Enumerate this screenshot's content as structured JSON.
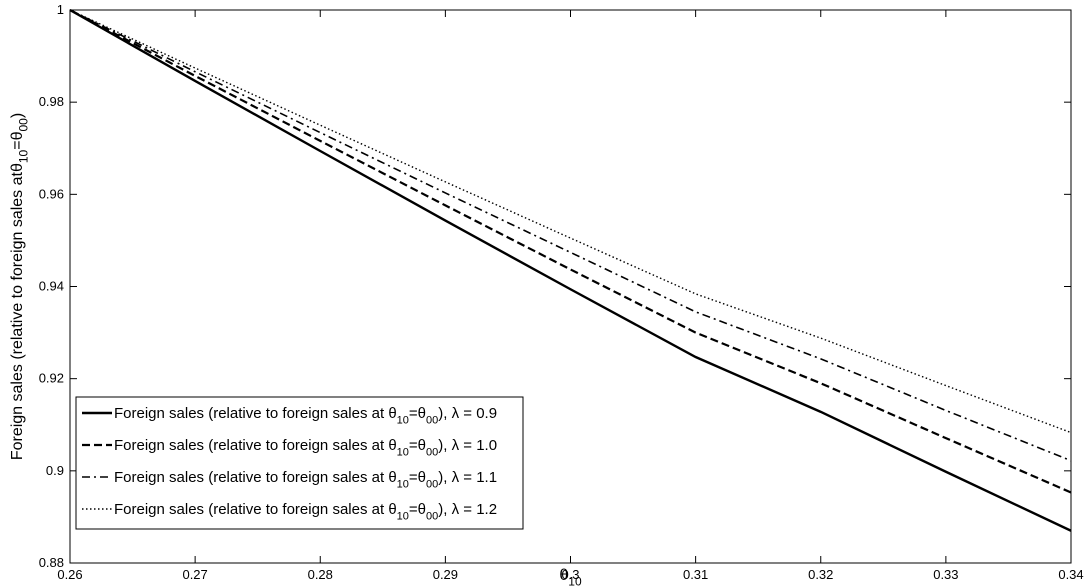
{
  "chart_data": {
    "type": "line",
    "xlabel": "θ10",
    "ylabel": "Foreign sales (relative to foreign sales atθ10=θ00)",
    "xlim": [
      0.26,
      0.34
    ],
    "ylim": [
      0.88,
      1.0
    ],
    "xticks": [
      "0.26",
      "0.27",
      "0.28",
      "0.29",
      "0.3",
      "0.31",
      "0.32",
      "0.33",
      "0.34"
    ],
    "yticks": [
      "0.88",
      "0.9",
      "0.92",
      "0.94",
      "0.96",
      "0.98",
      "1"
    ],
    "x": [
      0.26,
      0.27,
      0.28,
      0.29,
      0.3,
      0.31,
      0.32,
      0.33,
      0.34
    ],
    "grid": false,
    "legend_position": "bottom-left",
    "series": [
      {
        "name": "Foreign sales (relative to foreign sales at θ10=θ00), λ = 0.9",
        "style": "solid",
        "values": [
          1.0,
          0.9846,
          0.9694,
          0.9543,
          0.9394,
          0.9247,
          0.9128,
          0.8998,
          0.887
        ]
      },
      {
        "name": "Foreign sales (relative to foreign sales at θ10=θ00), λ = 1.0",
        "style": "dashed",
        "values": [
          1.0,
          0.9857,
          0.9716,
          0.9576,
          0.9437,
          0.93,
          0.919,
          0.9071,
          0.8953
        ]
      },
      {
        "name": "Foreign sales (relative to foreign sales at θ10=θ00), λ = 1.1",
        "style": "dashdot",
        "values": [
          1.0,
          0.9866,
          0.9734,
          0.9603,
          0.9474,
          0.9345,
          0.9243,
          0.9131,
          0.9022
        ]
      },
      {
        "name": "Foreign sales (relative to foreign sales at θ10=θ00), λ = 1.2",
        "style": "dotted",
        "values": [
          1.0,
          0.9874,
          0.975,
          0.9627,
          0.9505,
          0.9384,
          0.9288,
          0.9185,
          0.9083
        ]
      }
    ]
  }
}
